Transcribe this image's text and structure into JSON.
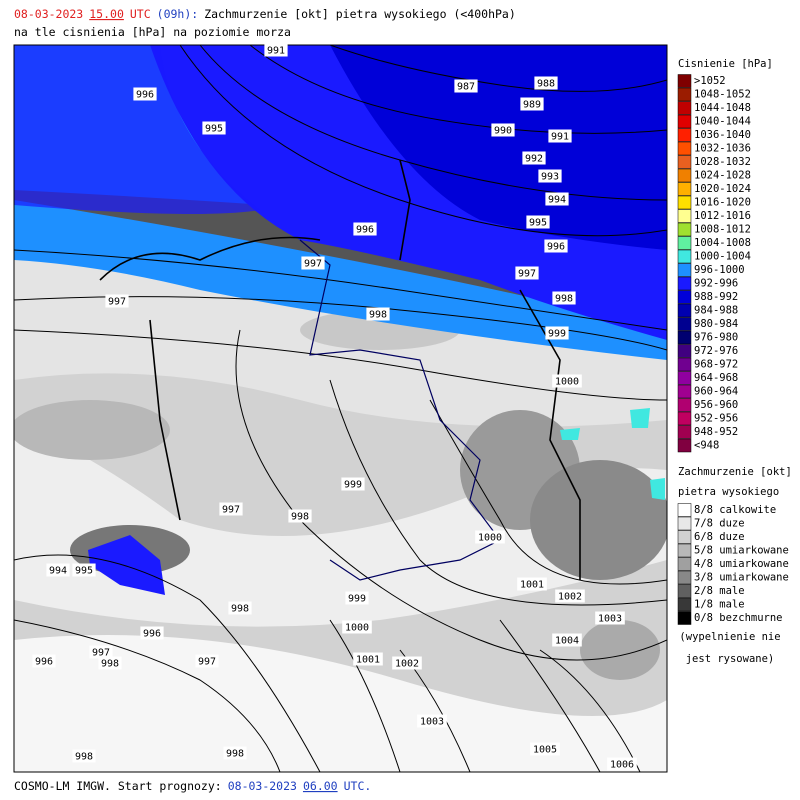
{
  "header": {
    "date": "08-03-2023",
    "time": "15.00",
    "zone": "UTC",
    "lead": "(09h):",
    "title": "Zachmurzenie [okt] pietra wysokiego (<400hPa)",
    "subtitle": "na tle cisnienia [hPa] na poziomie morza"
  },
  "footer": {
    "model": "COSMO-LM IMGW. Start prognozy:",
    "date": "08-03-2023",
    "time": "06.00",
    "zone": "UTC."
  },
  "pressure_legend": {
    "title": "Cisnienie [hPa]",
    "items": [
      {
        "label": ">1052",
        "color": "#7f0000"
      },
      {
        "label": "1048-1052",
        "color": "#9b1c00"
      },
      {
        "label": "1044-1048",
        "color": "#c00000"
      },
      {
        "label": "1040-1044",
        "color": "#e00000"
      },
      {
        "label": "1036-1040",
        "color": "#ff2000"
      },
      {
        "label": "1032-1036",
        "color": "#ff5000"
      },
      {
        "label": "1028-1032",
        "color": "#e86020"
      },
      {
        "label": "1024-1028",
        "color": "#f08000"
      },
      {
        "label": "1020-1024",
        "color": "#ffb000"
      },
      {
        "label": "1016-1020",
        "color": "#ffe000"
      },
      {
        "label": "1012-1016",
        "color": "#ffff90"
      },
      {
        "label": "1008-1012",
        "color": "#a0e030"
      },
      {
        "label": "1004-1008",
        "color": "#60f0a0"
      },
      {
        "label": "1000-1004",
        "color": "#40e8e0"
      },
      {
        "label": "996-1000",
        "color": "#1e90ff"
      },
      {
        "label": "992-996",
        "color": "#1a1aff"
      },
      {
        "label": "988-992",
        "color": "#0000d8"
      },
      {
        "label": "984-988",
        "color": "#0000b0"
      },
      {
        "label": "980-984",
        "color": "#000090"
      },
      {
        "label": "976-980",
        "color": "#000070"
      },
      {
        "label": "972-976",
        "color": "#400080"
      },
      {
        "label": "968-972",
        "color": "#700090"
      },
      {
        "label": "964-968",
        "color": "#9000a0"
      },
      {
        "label": "960-964",
        "color": "#a00090"
      },
      {
        "label": "956-960",
        "color": "#b00070"
      },
      {
        "label": "952-956",
        "color": "#c00060"
      },
      {
        "label": "948-952",
        "color": "#a00050"
      },
      {
        "label": "<948",
        "color": "#800040"
      }
    ]
  },
  "cloud_legend": {
    "title": "Zachmurzenie [okt]",
    "subtitle": "pietra wysokiego",
    "items": [
      {
        "label": "8/8 calkowite",
        "color": "#ffffff"
      },
      {
        "label": "7/8 duze",
        "color": "#e8e8e8"
      },
      {
        "label": "6/8 duze",
        "color": "#d0d0d0"
      },
      {
        "label": "5/8 umiarkowane",
        "color": "#b8b8b8"
      },
      {
        "label": "4/8 umiarkowane",
        "color": "#a0a0a0"
      },
      {
        "label": "3/8 umiarkowane",
        "color": "#888888"
      },
      {
        "label": "2/8 male",
        "color": "#606060"
      },
      {
        "label": "1/8 male",
        "color": "#383838"
      },
      {
        "label": "0/8 bezchmurne",
        "color": "#000000"
      }
    ],
    "note": [
      "(wypelnienie nie",
      "jest rysowane)"
    ]
  },
  "isobar_labels": [
    "991",
    "996",
    "995",
    "987",
    "988",
    "989",
    "990",
    "991",
    "992",
    "993",
    "994",
    "995",
    "996",
    "996",
    "997",
    "997",
    "998",
    "997",
    "998",
    "999",
    "1000",
    "999",
    "997",
    "998",
    "1000",
    "994",
    "995",
    "1001",
    "1002",
    "1003",
    "999",
    "998",
    "1000",
    "996",
    "1004",
    "996",
    "997",
    "998",
    "997",
    "1001",
    "1002",
    "1003",
    "1005",
    "998",
    "998",
    "1006"
  ]
}
